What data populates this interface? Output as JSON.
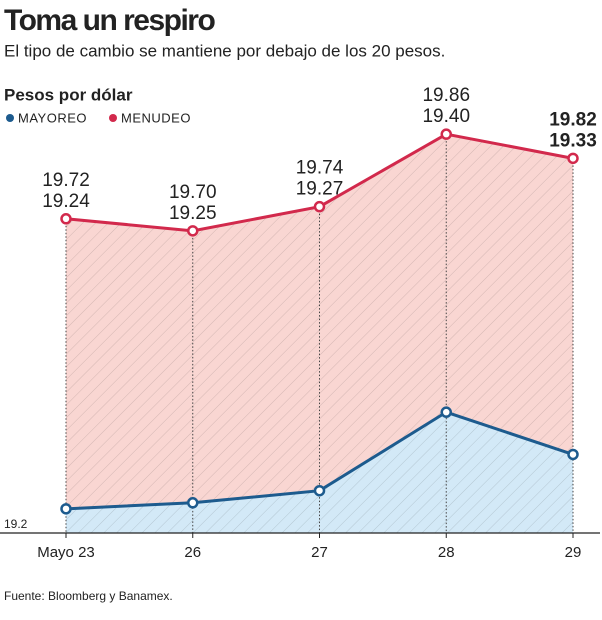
{
  "chart_data": {
    "type": "line",
    "title": "Toma un respiro",
    "subtitle": "El tipo de cambio se mantiene por debajo de los 20 pesos.",
    "y_label": "Pesos por dólar",
    "source": "Fuente: Bloomberg y Banamex.",
    "categories": [
      "Mayo 23",
      "26",
      "27",
      "28",
      "29"
    ],
    "series": [
      {
        "name": "MAYOREO",
        "color": "#1d5b8e",
        "fill": "#d3e9f7",
        "values": [
          19.24,
          19.25,
          19.27,
          19.4,
          19.33
        ],
        "value_labels": [
          "19.24",
          "19.25",
          "19.27",
          "19.40",
          "19.33"
        ]
      },
      {
        "name": "MENUDEO",
        "color": "#d2294c",
        "fill": "#f9d6d2",
        "values": [
          19.72,
          19.7,
          19.74,
          19.86,
          19.82
        ],
        "value_labels": [
          "19.72",
          "19.70",
          "19.74",
          "19.86",
          "19.82"
        ]
      }
    ],
    "ylim": [
      19.2,
      19.9
    ],
    "yticks": [
      19.2
    ]
  }
}
